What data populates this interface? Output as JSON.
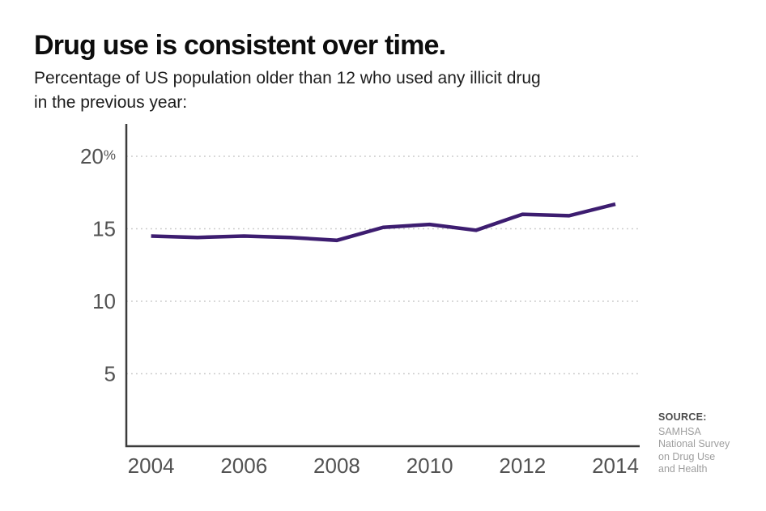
{
  "header": {
    "title": "Drug use is consistent over time.",
    "subtitle_lines": [
      "Percentage of US population older than 12 who used any illicit drug",
      "in the previous year:"
    ]
  },
  "source": {
    "label": "SOURCE:",
    "lines": [
      "SAMHSA",
      "National Survey",
      "on Drug Use",
      "and Health"
    ]
  },
  "colors": {
    "line": "#3d1d70",
    "axis": "#3c3c3c",
    "grid": "#c8c8c8",
    "tick_text": "#525252",
    "background": "#ffffff"
  },
  "chart_data": {
    "type": "line",
    "title": "Drug use is consistent over time.",
    "subtitle": "Percentage of US population older than 12 who used any illicit drug in the previous year:",
    "x": [
      2004,
      2005,
      2006,
      2007,
      2008,
      2009,
      2010,
      2011,
      2012,
      2013,
      2014
    ],
    "values": [
      14.5,
      14.4,
      14.5,
      14.4,
      14.2,
      15.1,
      15.3,
      14.9,
      16.0,
      15.9,
      16.7
    ],
    "xlabel": "",
    "ylabel": "",
    "ylim": [
      0,
      22.2
    ],
    "xlim": [
      2004,
      2014
    ],
    "yticks": [
      {
        "value": 20,
        "label": "20%"
      },
      {
        "value": 15,
        "label": "15"
      },
      {
        "value": 10,
        "label": "10"
      },
      {
        "value": 5,
        "label": "5"
      }
    ],
    "xticks": [
      2004,
      2006,
      2008,
      2010,
      2012,
      2014
    ],
    "grid": "horizontal-dotted",
    "legend": "none",
    "line_color": "#3d1d70",
    "source_note": "SOURCE: SAMHSA National Survey on Drug Use and Health"
  }
}
